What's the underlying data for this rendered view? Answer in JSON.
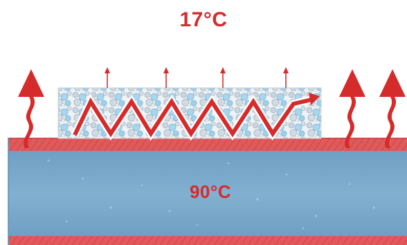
{
  "diagram": {
    "top_temperature": "17°C",
    "pipe_temperature": "90°C",
    "colors": {
      "heat_red": "#d62b2b",
      "pipe_blue": "#7aa9cd",
      "pipe_wall_red": "#e0595b",
      "insulation_bg": "#eef2f5"
    },
    "icons": [
      "heat-arrow-icon",
      "radiation-arrow-icon",
      "zigzag-heat-path-icon"
    ]
  }
}
